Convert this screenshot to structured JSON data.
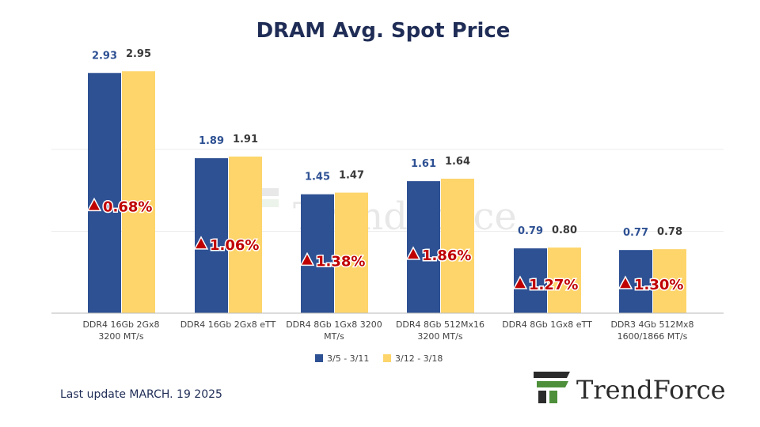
{
  "title": "DRAM Avg. Spot Price",
  "footer": {
    "last_update": "Last update MARCH. 19  2025",
    "brand": "TrendForce"
  },
  "chart_data": {
    "type": "bar",
    "title": "DRAM Avg. Spot Price",
    "categories": [
      [
        "DDR4 16Gb 2Gx8",
        "3200 MT/s"
      ],
      [
        "DDR4 16Gb 2Gx8 eTT"
      ],
      [
        "DDR4 8Gb 1Gx8 3200",
        "MT/s"
      ],
      [
        "DDR4 8Gb 512Mx16",
        "3200 MT/s"
      ],
      [
        "DDR4 8Gb 1Gx8 eTT"
      ],
      [
        "DDR3 4Gb 512Mx8",
        "1600/1866  MT/s"
      ]
    ],
    "series": [
      {
        "name": "3/5 - 3/11",
        "values": [
          2.93,
          1.89,
          1.45,
          1.61,
          0.79,
          0.77
        ],
        "color": "#2e5193",
        "label_color": "#2e5193"
      },
      {
        "name": "3/12 - 3/18",
        "values": [
          2.95,
          1.91,
          1.47,
          1.64,
          0.8,
          0.78
        ],
        "color": "#fdd56b",
        "label_color": "#3a3a3a"
      }
    ],
    "value_labels": [
      [
        "2.93",
        "2.95"
      ],
      [
        "1.89",
        "1.91"
      ],
      [
        "1.45",
        "1.47"
      ],
      [
        "1.61",
        "1.64"
      ],
      [
        "0.79",
        "0.80"
      ],
      [
        "0.77",
        "0.78"
      ]
    ],
    "changes": [
      "0.68%",
      "1.06%",
      "1.38%",
      "1.86%",
      "1.27%",
      "1.30%"
    ],
    "change_icon": "up-triangle-icon",
    "change_color": "#c00000",
    "ylim": [
      0,
      3.0
    ],
    "grid": true,
    "legend_position": "bottom"
  }
}
